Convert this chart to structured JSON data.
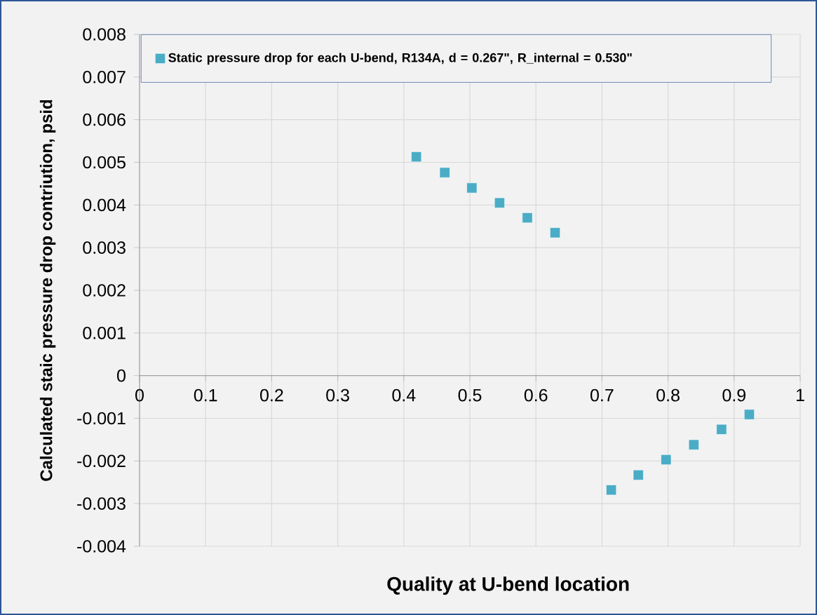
{
  "chart_data": {
    "type": "scatter",
    "xlabel": "Quality at U-bend location",
    "ylabel": "Calculated  staic pressure drop contriution, psid",
    "x": [
      0.419,
      0.462,
      0.503,
      0.545,
      0.587,
      0.629,
      0.714,
      0.755,
      0.797,
      0.839,
      0.881,
      0.923
    ],
    "series": [
      {
        "name": "Static pressure drop for each U-bend, R134A, d = 0.267\", R_internal = 0.530\"",
        "color": "#4bacc6",
        "values": [
          0.00513,
          0.00476,
          0.0044,
          0.00405,
          0.0037,
          0.00335,
          -0.00268,
          -0.00233,
          -0.00197,
          -0.00162,
          -0.00126,
          -0.00091
        ]
      }
    ],
    "xlim": [
      0,
      1
    ],
    "ylim": [
      -0.004,
      0.008
    ],
    "xticks": [
      0,
      0.1,
      0.2,
      0.3,
      0.4,
      0.5,
      0.6,
      0.7,
      0.8,
      0.9,
      1
    ],
    "yticks": [
      -0.004,
      -0.003,
      -0.002,
      -0.001,
      0,
      0.001,
      0.002,
      0.003,
      0.004,
      0.005,
      0.006,
      0.007,
      0.008
    ],
    "grid": true,
    "legend": "top left",
    "marker": "square"
  }
}
